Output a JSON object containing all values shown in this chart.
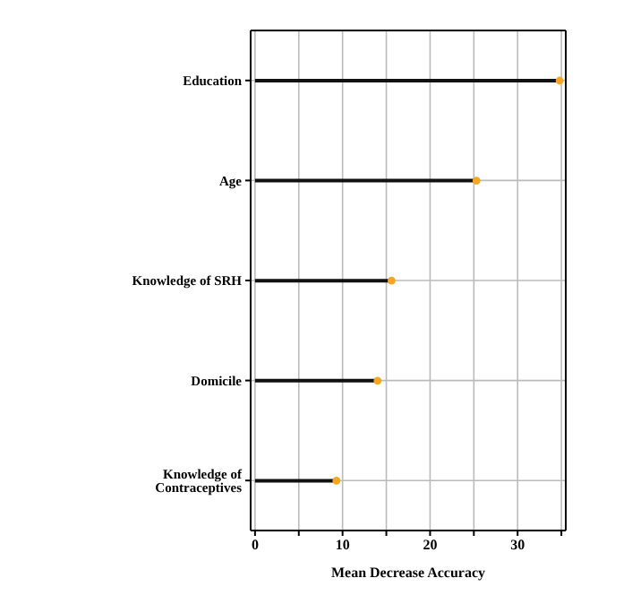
{
  "chart_data": {
    "type": "lollipop",
    "orientation": "horizontal",
    "xlabel": "Mean Decrease Accuracy",
    "categories": [
      "Education",
      "Age",
      "Knowledge of SRH",
      "Domicile",
      "Knowledge of Contraceptives"
    ],
    "values": [
      34.8,
      25.3,
      15.6,
      14.0,
      9.3
    ],
    "color": "#f5a623",
    "xlim": [
      -0.5,
      35.5
    ],
    "xticks": [
      0,
      {
        "value": 5,
        "label": null
      },
      10,
      {
        "value": 15,
        "label": null
      },
      20,
      {
        "value": 25,
        "label": null
      },
      30,
      {
        "value": 35,
        "label": null
      }
    ],
    "grid": true,
    "marker": "circle"
  }
}
